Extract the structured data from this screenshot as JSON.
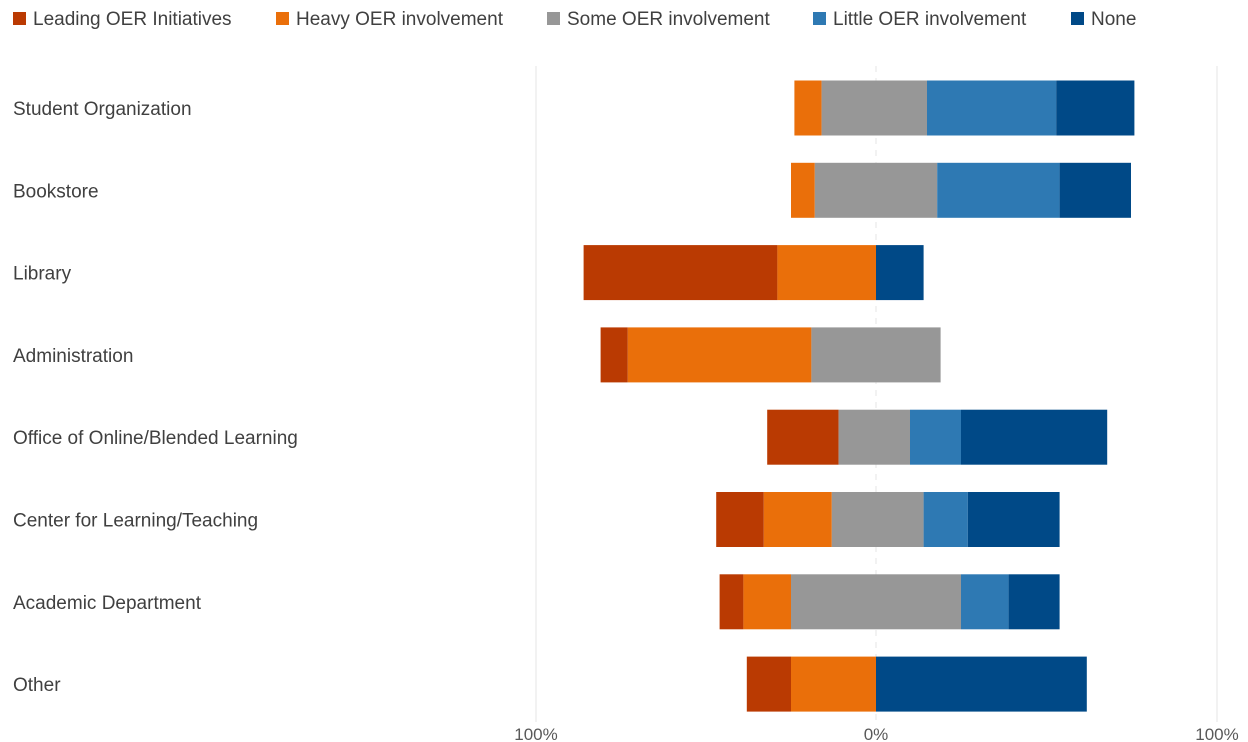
{
  "chart_data": {
    "type": "bar",
    "orientation": "horizontal",
    "stacking": "diverging",
    "title": "",
    "xlabel": "",
    "ylabel": "",
    "xlim": [
      -100,
      100
    ],
    "x_ticks": [
      "100%",
      "0%",
      "100%"
    ],
    "legend_position": "top",
    "grid": true,
    "categories": [
      "Student Organization",
      "Bookstore",
      "Library",
      "Administration",
      "Office of Online/Blended Learning",
      "Center for Learning/Teaching",
      "Academic Department",
      "Other"
    ],
    "series": [
      {
        "name": "Leading OER Initiatives",
        "color": "#BA3A02",
        "values": [
          0,
          0,
          57,
          8,
          21,
          14,
          7,
          13
        ]
      },
      {
        "name": "Heavy OER involvement",
        "color": "#EA6F0A",
        "values": [
          8,
          7,
          29,
          54,
          0,
          20,
          14,
          25
        ]
      },
      {
        "name": "Some OER involvement",
        "color": "#979797",
        "values": [
          31,
          36,
          0,
          38,
          21,
          27,
          50,
          0
        ]
      },
      {
        "name": "Little OER involvement",
        "color": "#2E79B3",
        "values": [
          38,
          36,
          0,
          0,
          15,
          13,
          14,
          0
        ]
      },
      {
        "name": "None",
        "color": "#004987",
        "values": [
          23,
          21,
          14,
          0,
          43,
          27,
          15,
          62
        ]
      }
    ],
    "offsets_left": [
      24,
      25,
      86,
      81,
      32,
      47,
      46,
      38
    ]
  }
}
